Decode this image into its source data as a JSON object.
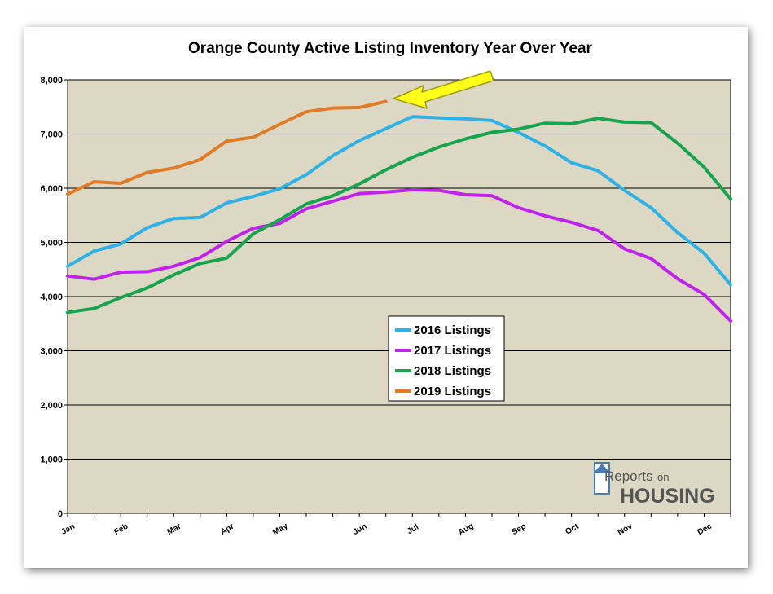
{
  "chart_data": {
    "type": "line",
    "title": "Orange County Active Listing Inventory Year Over Year",
    "ylim": [
      0,
      8000
    ],
    "yticks": [
      "0",
      "1,000",
      "2,000",
      "3,000",
      "4,000",
      "5,000",
      "6,000",
      "7,000",
      "8,000"
    ],
    "x_count": 26,
    "month_labels": [
      {
        "label": "Jan",
        "x": 0
      },
      {
        "label": "Feb",
        "x": 2
      },
      {
        "label": "Mar",
        "x": 4
      },
      {
        "label": "Apr",
        "x": 6
      },
      {
        "label": "May",
        "x": 8
      },
      {
        "label": "Jun",
        "x": 11
      },
      {
        "label": "Jul",
        "x": 13
      },
      {
        "label": "Aug",
        "x": 15
      },
      {
        "label": "Sep",
        "x": 17
      },
      {
        "label": "Oct",
        "x": 19
      },
      {
        "label": "Nov",
        "x": 21
      },
      {
        "label": "Dec",
        "x": 24
      }
    ],
    "grid": true,
    "legend_position": "center",
    "plot_background": "#ddd8c3",
    "series": [
      {
        "name": "2016 Listings",
        "color": "#2eb2e6",
        "values": [
          4560,
          4840,
          4970,
          5270,
          5440,
          5460,
          5730,
          5850,
          5990,
          6250,
          6600,
          6880,
          7100,
          7320,
          7300,
          7280,
          7250,
          7030,
          6780,
          6470,
          6320,
          5960,
          5640,
          5180,
          4800,
          4220
        ]
      },
      {
        "name": "2017 Listings",
        "color": "#bf23eb",
        "values": [
          4380,
          4320,
          4450,
          4460,
          4560,
          4720,
          5020,
          5260,
          5350,
          5620,
          5760,
          5900,
          5930,
          5970,
          5960,
          5880,
          5860,
          5640,
          5490,
          5370,
          5220,
          4880,
          4700,
          4330,
          4040,
          3550
        ]
      },
      {
        "name": "2018 Listings",
        "color": "#18a34f",
        "values": [
          3710,
          3780,
          3980,
          4160,
          4400,
          4610,
          4710,
          5160,
          5420,
          5710,
          5860,
          6080,
          6340,
          6570,
          6760,
          6910,
          7030,
          7090,
          7200,
          7190,
          7290,
          7220,
          7210,
          6830,
          6390,
          5800
        ]
      },
      {
        "name": "2019 Listings",
        "color": "#e07b28",
        "values": [
          5890,
          6120,
          6090,
          6290,
          6370,
          6530,
          6870,
          6940,
          7180,
          7410,
          7480,
          7490,
          7600
        ]
      }
    ],
    "annotation": "arrow pointing to latest 2019 value"
  },
  "logo": {
    "word1": "Reports",
    "word2": "on",
    "word3": "HOUSING"
  },
  "colors": {
    "grid": "#000000",
    "arrow_fill": "#ffff1a",
    "arrow_stroke": "#9c9c1a"
  }
}
